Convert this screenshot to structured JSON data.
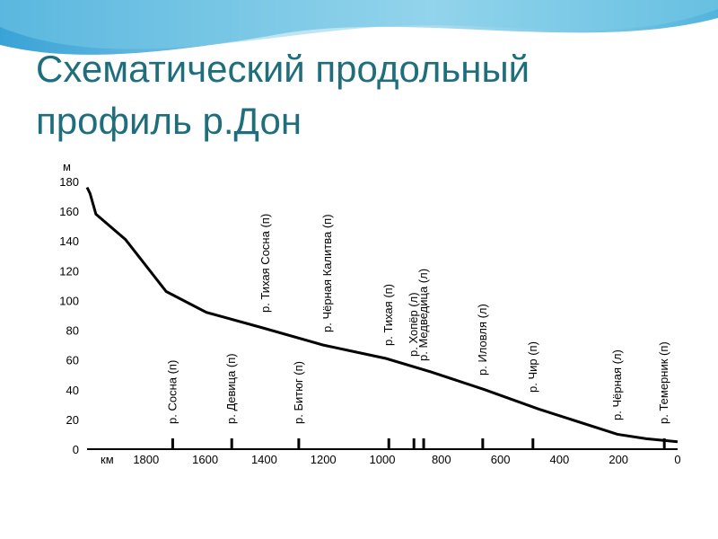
{
  "chart_data": {
    "type": "line",
    "title": "Схематический продольный профиль р.Дон",
    "y_label": "м",
    "x_label": "км",
    "x": [
      2000,
      1990,
      1970,
      1870,
      1732,
      1596,
      1413,
      1200,
      988,
      836,
      653,
      471,
      204,
      106,
      0
    ],
    "series": [
      {
        "color": "#000000",
        "values": [
          176,
          172,
          158,
          141,
          106,
          92,
          82,
          70,
          61,
          52,
          40,
          27,
          10,
          7,
          5
        ]
      }
    ],
    "xlim": [
      2000,
      0
    ],
    "xticks": [
      1800,
      1600,
      1400,
      1200,
      1000,
      800,
      600,
      400,
      200,
      0
    ],
    "ylim": [
      0,
      180
    ],
    "yticks": [
      0,
      20,
      40,
      60,
      80,
      100,
      120,
      140,
      160,
      180
    ],
    "tributaries": [
      {
        "label": "р. Сосна (п)",
        "km": 1710,
        "mark": true
      },
      {
        "label": "р. Девица (п)",
        "km": 1510,
        "mark": true
      },
      {
        "label": "р. Тихая Сосна (п)",
        "km": 1395,
        "mark": false
      },
      {
        "label": "р. Битюг (п)",
        "km": 1283,
        "mark": true
      },
      {
        "label": "р. Чёрная Калитва (п)",
        "km": 1185,
        "mark": false
      },
      {
        "label": "р. Тихая (п)",
        "km": 978,
        "mark": true
      },
      {
        "label": "р. Хопёр (л)",
        "km": 893,
        "mark": true
      },
      {
        "label": "р. Медведица (л)",
        "km": 860,
        "mark": true
      },
      {
        "label": "р. Иловля (л)",
        "km": 660,
        "mark": true
      },
      {
        "label": "р. Чир (п)",
        "km": 490,
        "mark": true
      },
      {
        "label": "р. Чёрная (л)",
        "km": 204,
        "mark": false
      },
      {
        "label": "р. Темерник (п)",
        "km": 45,
        "mark": true
      }
    ]
  }
}
